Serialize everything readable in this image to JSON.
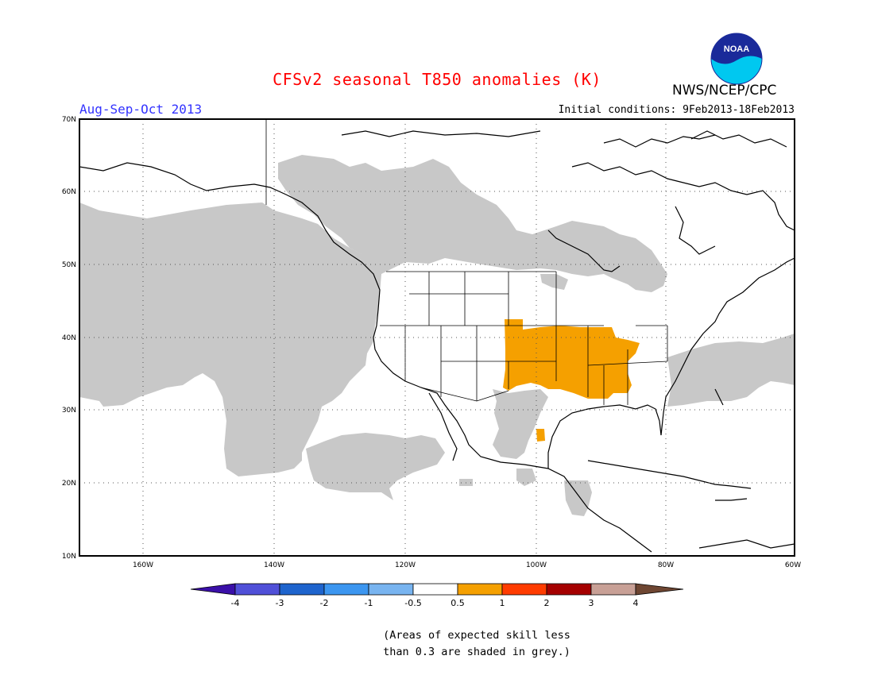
{
  "title": "CFSv2 seasonal T850 anomalies (K)",
  "season": "Aug-Sep-Oct 2013",
  "initial_conditions": "Initial conditions: 9Feb2013-18Feb2013",
  "agency": "NWS/NCEP/CPC",
  "logo_text": "NOAA",
  "lat_labels": [
    "70N",
    "60N",
    "50N",
    "40N",
    "30N",
    "20N",
    "10N"
  ],
  "lon_labels": [
    "160W",
    "140W",
    "120W",
    "100W",
    "80W",
    "60W"
  ],
  "colorbar": {
    "labels": [
      "-4",
      "-3",
      "-2",
      "-1",
      "-0.5",
      "0.5",
      "1",
      "2",
      "3",
      "4"
    ],
    "colors": [
      "#3a0fa8",
      "#5050d8",
      "#1e64cd",
      "#3c96f0",
      "#78b4f0",
      "#ffffff",
      "#f5a000",
      "#ff3c00",
      "#a50000",
      "#c8a096",
      "#6e4632"
    ]
  },
  "skill_mask_color": "#c8c8c8",
  "anomaly_color": "#f5a000",
  "footnote_line1": "(Areas of expected skill less",
  "footnote_line2": "than 0.3 are shaded in grey.)"
}
